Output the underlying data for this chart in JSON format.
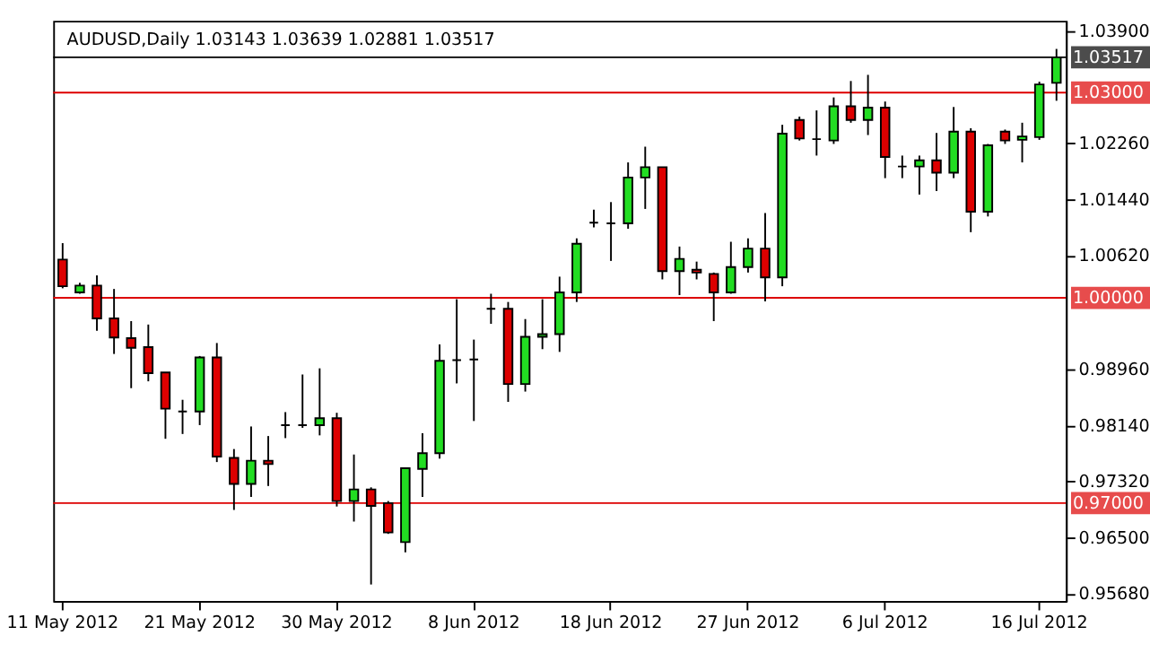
{
  "chart_data": {
    "type": "candlestick",
    "title": "AUDUSD,Daily  1.03143 1.03639 1.02881 1.03517",
    "categories": [
      "11 May 2012",
      null,
      null,
      null,
      null,
      null,
      null,
      null,
      "21 May 2012",
      null,
      null,
      null,
      null,
      null,
      null,
      null,
      "30 May 2012",
      null,
      null,
      null,
      null,
      null,
      null,
      null,
      "8 Jun 2012",
      null,
      null,
      null,
      null,
      null,
      null,
      null,
      "18 Jun 2012",
      null,
      null,
      null,
      null,
      null,
      null,
      null,
      "27 Jun 2012",
      null,
      null,
      null,
      null,
      null,
      null,
      null,
      "6 Jul 2012",
      null,
      null,
      null,
      null,
      null,
      null,
      null,
      null,
      "16 Jul 2012",
      null
    ],
    "ohlc": [
      [
        1.0056,
        1.008,
        1.0014,
        1.0017
      ],
      [
        1.0008,
        1.0022,
        1.0006,
        1.0018
      ],
      [
        1.0018,
        1.0033,
        0.9952,
        0.997
      ],
      [
        0.997,
        1.0013,
        0.9918,
        0.9942
      ],
      [
        0.9941,
        0.9966,
        0.9868,
        0.9927
      ],
      [
        0.9928,
        0.9961,
        0.9878,
        0.989
      ],
      [
        0.9891,
        0.9891,
        0.9794,
        0.9838
      ],
      [
        0.9834,
        0.9851,
        0.9801,
        0.9834
      ],
      [
        0.9834,
        0.9915,
        0.9814,
        0.9913
      ],
      [
        0.9913,
        0.9934,
        0.976,
        0.9768
      ],
      [
        0.9766,
        0.9779,
        0.969,
        0.9728
      ],
      [
        0.9728,
        0.9812,
        0.9709,
        0.9762
      ],
      [
        0.9762,
        0.9798,
        0.9725,
        0.9757
      ],
      [
        0.9814,
        0.9833,
        0.9795,
        0.9814
      ],
      [
        0.9814,
        0.9888,
        0.981,
        0.9814
      ],
      [
        0.9814,
        0.9897,
        0.9799,
        0.9824
      ],
      [
        0.9824,
        0.9832,
        0.9695,
        0.9703
      ],
      [
        0.9703,
        0.9771,
        0.9673,
        0.972
      ],
      [
        0.972,
        0.9723,
        0.9581,
        0.9696
      ],
      [
        0.97,
        0.9703,
        0.9655,
        0.9657
      ],
      [
        0.9643,
        0.9752,
        0.9628,
        0.9751
      ],
      [
        0.975,
        0.9802,
        0.9709,
        0.9773
      ],
      [
        0.9773,
        0.9932,
        0.9765,
        0.9908
      ],
      [
        0.9909,
        0.9998,
        0.9875,
        0.9909
      ],
      [
        0.991,
        0.9939,
        0.982,
        0.991
      ],
      [
        0.9984,
        1.0006,
        0.9962,
        0.9984
      ],
      [
        0.9984,
        0.9994,
        0.9848,
        0.9874
      ],
      [
        0.9874,
        0.9969,
        0.9863,
        0.9943
      ],
      [
        0.9943,
        0.9998,
        0.9925,
        0.9947
      ],
      [
        0.9947,
        1.0031,
        0.9921,
        1.0008
      ],
      [
        1.0008,
        1.0087,
        0.9994,
        1.0079
      ],
      [
        1.011,
        1.0129,
        1.0103,
        1.011
      ],
      [
        1.0109,
        1.014,
        1.0054,
        1.0109
      ],
      [
        1.0109,
        1.0198,
        1.0101,
        1.0176
      ],
      [
        1.0176,
        1.0221,
        1.013,
        1.0191
      ],
      [
        1.0191,
        1.0191,
        1.0027,
        1.0039
      ],
      [
        1.0039,
        1.0075,
        1.0004,
        1.0057
      ],
      [
        1.0041,
        1.0053,
        1.0027,
        1.0037
      ],
      [
        1.0035,
        1.0037,
        0.9966,
        1.0008
      ],
      [
        1.0008,
        1.0082,
        1.0006,
        1.0045
      ],
      [
        1.0045,
        1.0087,
        1.0037,
        1.0072
      ],
      [
        1.0072,
        1.0124,
        0.9995,
        1.003
      ],
      [
        1.003,
        1.0253,
        1.0017,
        1.024
      ],
      [
        1.026,
        1.0265,
        1.023,
        1.0233
      ],
      [
        1.0232,
        1.0274,
        1.0208,
        1.0232
      ],
      [
        1.023,
        1.0293,
        1.0225,
        1.028
      ],
      [
        1.028,
        1.0317,
        1.0256,
        1.026
      ],
      [
        1.026,
        1.0326,
        1.0238,
        1.0278
      ],
      [
        1.0278,
        1.0287,
        1.0175,
        1.0206
      ],
      [
        1.0192,
        1.0208,
        1.0175,
        1.0192
      ],
      [
        1.0192,
        1.0208,
        1.0151,
        1.0201
      ],
      [
        1.0201,
        1.0241,
        1.0156,
        1.0183
      ],
      [
        1.0183,
        1.0279,
        1.0175,
        1.0243
      ],
      [
        1.0243,
        1.0248,
        1.0096,
        1.0126
      ],
      [
        1.0126,
        1.0225,
        1.0119,
        1.0223
      ],
      [
        1.0243,
        1.0246,
        1.0225,
        1.023
      ],
      [
        1.0231,
        1.0256,
        1.0198,
        1.0236
      ],
      [
        1.0235,
        1.0316,
        1.0231,
        1.0312
      ],
      [
        1.03143,
        1.03639,
        1.02881,
        1.03517
      ]
    ],
    "colors": [
      "#dd0000",
      "#22dd22",
      "#dd0000",
      "#dd0000",
      "#dd0000",
      "#dd0000",
      "#dd0000",
      "#000000",
      "#22dd22",
      "#dd0000",
      "#dd0000",
      "#22dd22",
      "#dd0000",
      "#000000",
      "#000000",
      "#22dd22",
      "#dd0000",
      "#22dd22",
      "#dd0000",
      "#dd0000",
      "#22dd22",
      "#22dd22",
      "#22dd22",
      "#000000",
      "#000000",
      "#000000",
      "#dd0000",
      "#22dd22",
      "#22dd22",
      "#22dd22",
      "#22dd22",
      "#000000",
      "#000000",
      "#22dd22",
      "#22dd22",
      "#dd0000",
      "#22dd22",
      "#dd0000",
      "#dd0000",
      "#22dd22",
      "#22dd22",
      "#dd0000",
      "#22dd22",
      "#dd0000",
      "#000000",
      "#22dd22",
      "#dd0000",
      "#22dd22",
      "#dd0000",
      "#000000",
      "#22dd22",
      "#dd0000",
      "#22dd22",
      "#dd0000",
      "#22dd22",
      "#dd0000",
      "#22dd22",
      "#22dd22",
      "#22dd22"
    ],
    "ylim": [
      0.9557,
      1.0405
    ],
    "yticks": [
      {
        "value": 1.039,
        "label": "1.03900"
      },
      {
        "value": 1.0226,
        "label": "1.02260"
      },
      {
        "value": 1.0144,
        "label": "1.01440"
      },
      {
        "value": 1.0062,
        "label": "1.00620"
      },
      {
        "value": 0.9896,
        "label": "0.98960"
      },
      {
        "value": 0.9814,
        "label": "0.98140"
      },
      {
        "value": 0.9732,
        "label": "0.97320"
      },
      {
        "value": 0.965,
        "label": "0.96500"
      },
      {
        "value": 0.9568,
        "label": "0.95680"
      }
    ],
    "ref_lines": [
      {
        "axis": "y",
        "value": 1.03,
        "label": "1.03000",
        "color": "#dd0000"
      },
      {
        "axis": "y",
        "value": 1.0,
        "label": "1.00000",
        "color": "#dd0000"
      },
      {
        "axis": "y",
        "value": 0.97,
        "label": "0.97000",
        "color": "#dd0000"
      },
      {
        "axis": "y",
        "value": 1.03517,
        "label": "1.03517",
        "color": "#000000"
      }
    ],
    "grid": false
  }
}
